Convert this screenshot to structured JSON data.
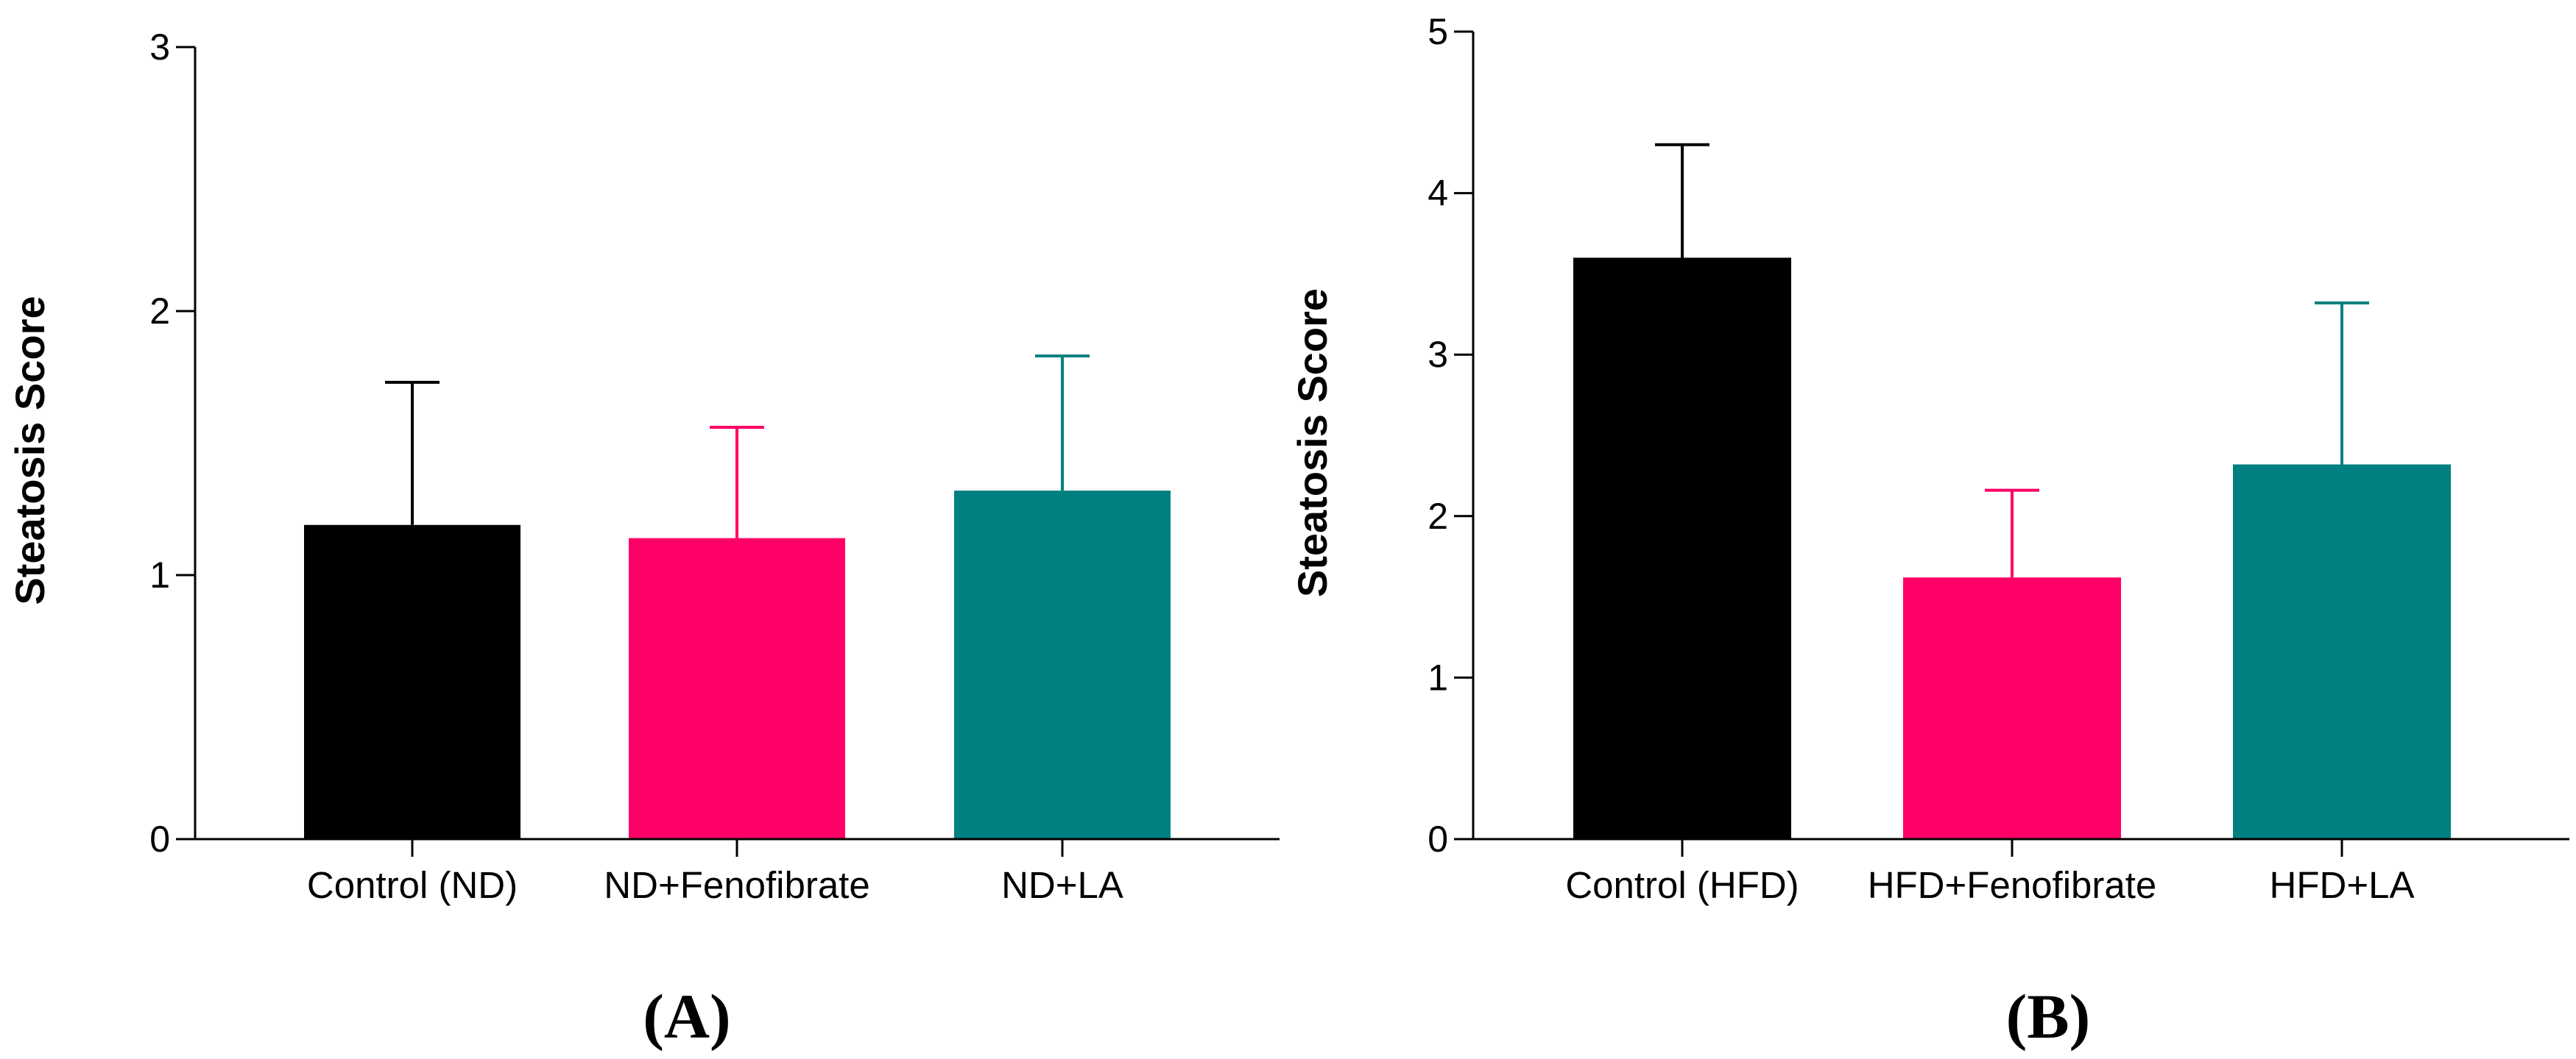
{
  "chart_data": [
    {
      "type": "bar",
      "panel_label": "(A)",
      "ylabel": "Steatosis Score",
      "xlabel": "",
      "ylim": [
        0,
        3
      ],
      "yticks": [
        0,
        1,
        2,
        3
      ],
      "ytick_labels": [
        "0",
        "1",
        "2",
        "3"
      ],
      "categories": [
        "Control (ND)",
        "ND+Fenofibrate",
        "ND+LA"
      ],
      "values": [
        1.19,
        1.14,
        1.32
      ],
      "error_upper": [
        1.73,
        1.56,
        1.83
      ],
      "colors": [
        "#000000",
        "#ff0066",
        "#008080"
      ],
      "grid": false,
      "legend": "none"
    },
    {
      "type": "bar",
      "panel_label": "(B)",
      "ylabel": "Steatosis Score",
      "xlabel": "",
      "ylim": [
        0,
        5
      ],
      "yticks": [
        0,
        1,
        2,
        3,
        4,
        5
      ],
      "ytick_labels": [
        "0",
        "1",
        "2",
        "3",
        "4",
        "5"
      ],
      "categories": [
        "Control (HFD)",
        "HFD+Fenofibrate",
        "HFD+LA"
      ],
      "values": [
        3.6,
        1.62,
        2.32
      ],
      "error_upper": [
        4.3,
        2.16,
        3.32
      ],
      "colors": [
        "#000000",
        "#ff0066",
        "#008080"
      ],
      "grid": false,
      "legend": "none"
    }
  ]
}
